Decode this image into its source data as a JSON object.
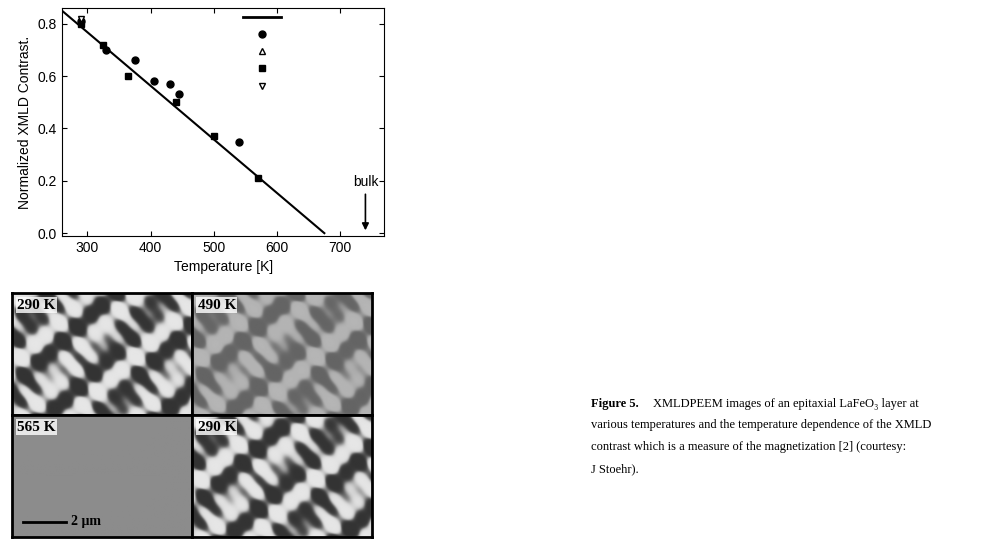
{
  "chart_data": {
    "type": "scatter",
    "x_label": "Temperature [K]",
    "y_label": "Normalized XMLD Contrast.",
    "xlim": [
      260,
      770
    ],
    "xticks": [
      300,
      400,
      500,
      600,
      700
    ],
    "ylim": [
      -0.01,
      0.86
    ],
    "yticks": [
      0.0,
      0.2,
      0.4,
      0.6,
      0.8
    ],
    "series": [
      {
        "type": "line",
        "x": [
          260,
          675
        ],
        "values": [
          0.85,
          0.0
        ],
        "color": "#000000",
        "line_style": "solid"
      },
      {
        "type": "scatter",
        "marker": "filled circle",
        "color": "#000000",
        "x": [
          290,
          330,
          375,
          405,
          430,
          445,
          540
        ],
        "values": [
          0.81,
          0.7,
          0.66,
          0.58,
          0.57,
          0.53,
          0.35
        ]
      },
      {
        "type": "scatter",
        "marker": "open triangle up",
        "color": "#000000",
        "x": [
          290
        ],
        "values": [
          0.81
        ]
      },
      {
        "type": "scatter",
        "marker": "filled square",
        "color": "#000000",
        "x": [
          290,
          325,
          365,
          440,
          500,
          570
        ],
        "values": [
          0.8,
          0.72,
          0.6,
          0.5,
          0.37,
          0.21
        ]
      },
      {
        "type": "scatter",
        "marker": "open triangle down",
        "color": "#000000",
        "x": [
          290
        ],
        "values": [
          0.82
        ]
      }
    ],
    "annotations": [
      {
        "text": "bulk",
        "x": 740,
        "y": 0.0
      }
    ]
  },
  "images": [
    {
      "label": "290 K"
    },
    {
      "label": "490 K"
    },
    {
      "label": "565 K",
      "scale_bar": "2 μm"
    },
    {
      "label": "290 K"
    }
  ],
  "caption": {
    "label": "Figure 5.",
    "lines": [
      "XMLDPEEM images of an epitaxial LaFeO₃ layer at",
      "various temperatures and the temperature dependence of the XMLD",
      "contrast which is a measure of the magnetization [2] (courtesy:",
      "J Stoehr)."
    ]
  }
}
